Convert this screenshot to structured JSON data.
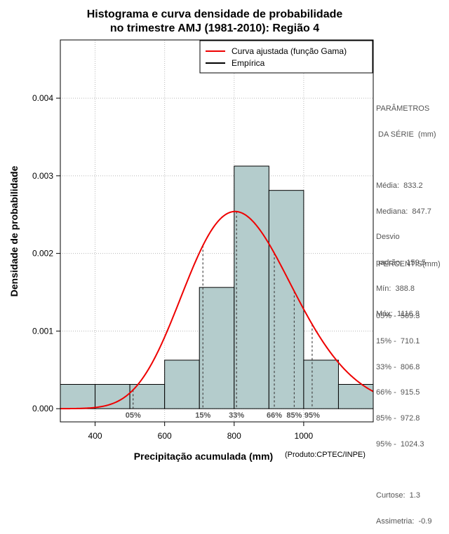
{
  "chart_data": {
    "type": "bar",
    "title_lines": [
      "Histograma e curva densidade de probabilidade",
      "no trimestre AMJ (1981-2010): Região 4"
    ],
    "xlabel": "Precipitação acumulada (mm)",
    "ylabel": "Densidade de probabilidade",
    "credit": "(Produto:CPTEC/INPE)",
    "xlim": [
      300,
      1200
    ],
    "ylim": [
      -0.00017,
      0.00475
    ],
    "x_ticks": [
      400,
      600,
      800,
      1000
    ],
    "x_tick_labels": [
      "400",
      "600",
      "800",
      "1000"
    ],
    "y_ticks": [
      0,
      0.001,
      0.002,
      0.003,
      0.004
    ],
    "y_tick_labels": [
      "0.000",
      "0.001",
      "0.002",
      "0.003",
      "0.004"
    ],
    "grid": true,
    "bins": [
      {
        "start": 300,
        "end": 400,
        "density": 0.000313
      },
      {
        "start": 400,
        "end": 500,
        "density": 0.000313
      },
      {
        "start": 500,
        "end": 600,
        "density": 0.000313
      },
      {
        "start": 600,
        "end": 700,
        "density": 0.000625
      },
      {
        "start": 700,
        "end": 800,
        "density": 0.001562
      },
      {
        "start": 800,
        "end": 900,
        "density": 0.003125
      },
      {
        "start": 900,
        "end": 1000,
        "density": 0.002812
      },
      {
        "start": 1000,
        "end": 1100,
        "density": 0.000625
      },
      {
        "start": 1100,
        "end": 1200,
        "density": 0.000313
      }
    ],
    "bar_color": "#b4cccc",
    "gamma_fit": {
      "mean": 833.2,
      "sd": 159.5,
      "color": "#ee0000"
    },
    "percentile_lines": [
      {
        "label": "05%",
        "value": 509.3
      },
      {
        "label": "15%",
        "value": 710.1
      },
      {
        "label": "33%",
        "value": 806.8
      },
      {
        "label": "66%",
        "value": 915.5
      },
      {
        "label": "85%",
        "value": 972.8
      },
      {
        "label": "95%",
        "value": 1024.3
      }
    ],
    "legend": [
      {
        "label": "Curva ajustada (função Gama)",
        "color": "#ee0000"
      },
      {
        "label": "Empírica",
        "color": "#000000"
      }
    ]
  },
  "parameters": {
    "heading1": "PARÂMETROS",
    "heading2": " DA SÉRIE  (mm)",
    "media": "Média:  833.2",
    "mediana": "Mediana:  847.7",
    "desvio1": "Desvio",
    "desvio2": "padrão:  159.5",
    "min": "Mín:  388.8",
    "max": "Máx:  1116.8"
  },
  "percentis": {
    "heading": " PERCENTIS(mm)",
    "p05": "05% -  509.3",
    "p15": "15% -  710.1",
    "p33": "33% -  806.8",
    "p66": "66% -  915.5",
    "p85": "85% -  972.8",
    "p95": "95% -  1024.3",
    "curtose": "Curtose:  1.3",
    "assimetria": "Assimetria:  -0.9"
  }
}
